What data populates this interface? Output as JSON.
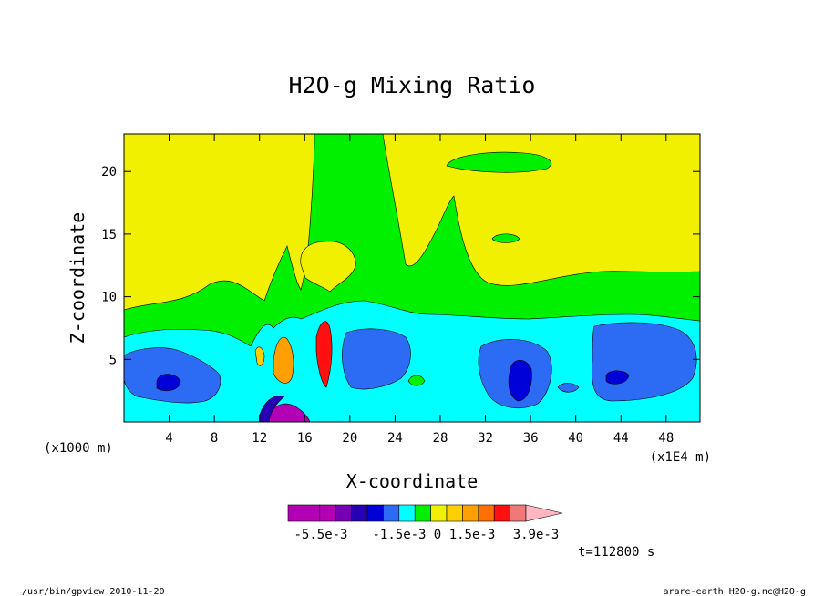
{
  "chart_data": {
    "type": "heatmap",
    "title": "H2O-g Mixing Ratio",
    "xlabel": "X-coordinate",
    "ylabel": "Z-coordinate",
    "x_unit_left": "(x1000 m)",
    "x_unit_right": "(x1E4 m)",
    "xlim": [
      0,
      51
    ],
    "ylim": [
      0,
      23
    ],
    "x_ticks": [
      "4",
      "8",
      "12",
      "16",
      "20",
      "24",
      "28",
      "32",
      "36",
      "40",
      "44",
      "48"
    ],
    "y_ticks": [
      "5",
      "10",
      "15",
      "20"
    ],
    "colorbar_levels": [
      "-5.5e-3",
      "-1.5e-3",
      "0",
      "1.5e-3",
      "3.9e-3"
    ],
    "colorbar_colors": [
      "#b400b4",
      "#b400b4",
      "#b400b4",
      "#7800b4",
      "#2800b4",
      "#0000d8",
      "#2c6cf4",
      "#00ffff",
      "#00f000",
      "#f0f000",
      "#ffd000",
      "#ffa000",
      "#ff7000",
      "#ff1010",
      "#f07878",
      "#ffb6c1"
    ],
    "time_label": "t=112800 s"
  },
  "footer": {
    "left": "/usr/bin/gpview  2010-11-20",
    "right": "arare-earth_H2O-g.nc@H2O-g"
  }
}
